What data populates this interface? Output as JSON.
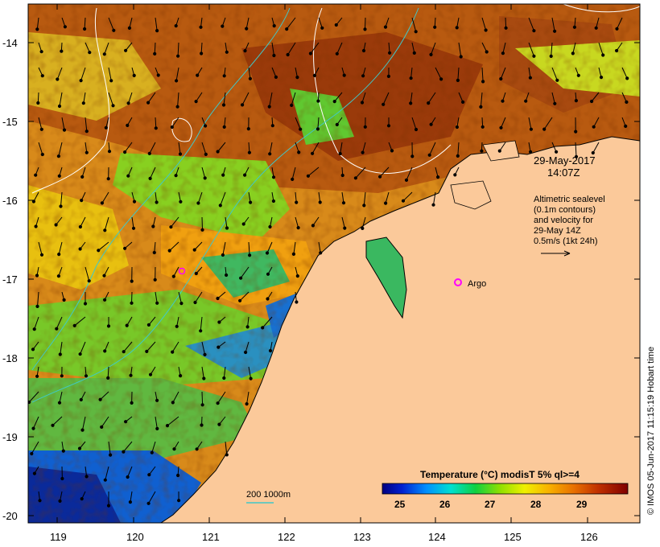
{
  "map": {
    "date": "29-May-2017",
    "time": "14:07Z",
    "altimetry_lines": [
      "Altimetric sealevel",
      "(0.1m contours)",
      "and velocity for",
      "29-May 14Z",
      "0.5m/s (1kt 24h)"
    ],
    "argo_label": "Argo",
    "scale_label": "200  1000m",
    "credit": "© IMOS 05-Jun-2017 11:15:19 Hobart time",
    "colorbar_title": "Temperature (°C) modisT 5% ql>=4",
    "colorbar_ticks": [
      "25",
      "26",
      "27",
      "28",
      "29"
    ],
    "lat_ticks": [
      "-14",
      "-15",
      "-16",
      "-17",
      "-18",
      "-19",
      "-20"
    ],
    "lon_ticks": [
      "119",
      "120",
      "121",
      "122",
      "123",
      "124",
      "125",
      "126"
    ],
    "colors": {
      "land": "#fbc99a",
      "frame": "#000000",
      "argo_marker": "#ff00ff",
      "contour": "#ffffff",
      "isobath": "#40c8c8"
    }
  }
}
